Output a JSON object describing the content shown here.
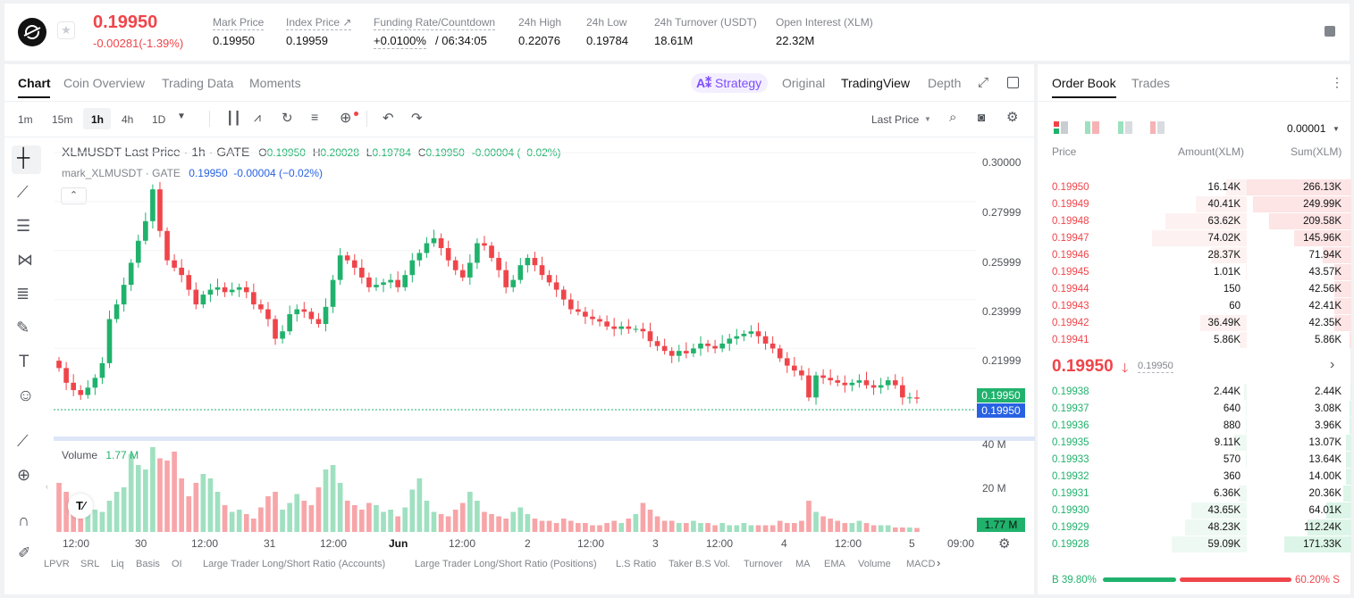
{
  "ticker": {
    "last_price": "0.19950",
    "change": "-0.00281(-1.39%)",
    "stats": [
      {
        "label": "Mark Price",
        "value": "0.19950"
      },
      {
        "label": "Index Price ↗",
        "value": "0.19959"
      },
      {
        "label": "Funding Rate/Countdown",
        "value": "+0.0100%",
        "value2": "/ 06:34:05"
      },
      {
        "label": "24h High",
        "value": "0.22076"
      },
      {
        "label": "24h Low",
        "value": "0.19784"
      },
      {
        "label": "24h Turnover (USDT)",
        "value": "18.61M"
      },
      {
        "label": "Open Interest (XLM)",
        "value": "22.32M"
      }
    ]
  },
  "chart_tabs": [
    "Chart",
    "Coin Overview",
    "Trading Data",
    "Moments"
  ],
  "view_tabs": {
    "strategy": "Strategy",
    "original": "Original",
    "tradingview": "TradingView",
    "depth": "Depth"
  },
  "intervals": [
    "1m",
    "15m",
    "1h",
    "4h",
    "1D"
  ],
  "price_type": "Last Price",
  "legend": {
    "symbol": "XLMUSDT Last Price · 1h · GATE",
    "o_label": "O",
    "o": "0.19950",
    "h_label": "H",
    "h": "0.20028",
    "l_label": "L",
    "l": "0.19784",
    "c_label": "C",
    "c": "0.19950",
    "chg": "-0.00004 (−0.02%)",
    "mark": "mark_XLMUSDT · GATE",
    "mark_vals": "0.19950  -0.00004 (−0.02%)"
  },
  "volume": {
    "label": "Volume",
    "value": "1.77 M",
    "axis": [
      "40 M",
      "20 M"
    ],
    "badge": "1.77 M"
  },
  "indicators": [
    "LPVR",
    "SRL",
    "Liq",
    "Basis",
    "OI",
    "Large Trader Long/Short Ratio (Accounts)",
    "Large Trader Long/Short Ratio (Positions)",
    "L.S Ratio",
    "Taker B.S Vol.",
    "Turnover",
    "MA",
    "EMA",
    "Volume",
    "MACD"
  ],
  "colors": {
    "up": "#20b26c",
    "down": "#ef454a",
    "accent": "#2862e3"
  },
  "chart_data": {
    "type": "candlestick",
    "y_ticks": [
      "0.30000",
      "0.27999",
      "0.25999",
      "0.23999",
      "0.21999"
    ],
    "ylim": [
      0.195,
      0.3
    ],
    "x_ticks": [
      "12:00",
      "30",
      "12:00",
      "31",
      "12:00",
      "Jun",
      "12:00",
      "2",
      "12:00",
      "3",
      "12:00",
      "4",
      "12:00",
      "5",
      "09:00"
    ],
    "price_badges": [
      "0.19950",
      "0.19950"
    ],
    "close": [
      0.212,
      0.206,
      0.203,
      0.201,
      0.204,
      0.208,
      0.214,
      0.232,
      0.238,
      0.246,
      0.255,
      0.264,
      0.272,
      0.285,
      0.268,
      0.256,
      0.253,
      0.25,
      0.244,
      0.238,
      0.242,
      0.244,
      0.245,
      0.243,
      0.244,
      0.245,
      0.243,
      0.238,
      0.236,
      0.232,
      0.224,
      0.227,
      0.234,
      0.236,
      0.235,
      0.232,
      0.23,
      0.237,
      0.248,
      0.258,
      0.256,
      0.253,
      0.249,
      0.245,
      0.246,
      0.247,
      0.248,
      0.245,
      0.25,
      0.256,
      0.259,
      0.263,
      0.265,
      0.261,
      0.256,
      0.252,
      0.249,
      0.255,
      0.263,
      0.262,
      0.257,
      0.252,
      0.245,
      0.248,
      0.254,
      0.257,
      0.254,
      0.25,
      0.247,
      0.244,
      0.24,
      0.236,
      0.235,
      0.233,
      0.232,
      0.231,
      0.229,
      0.228,
      0.229,
      0.228,
      0.228,
      0.227,
      0.223,
      0.221,
      0.219,
      0.217,
      0.219,
      0.218,
      0.22,
      0.222,
      0.221,
      0.22,
      0.222,
      0.224,
      0.225,
      0.226,
      0.227,
      0.225,
      0.222,
      0.22,
      0.216,
      0.213,
      0.211,
      0.209,
      0.2,
      0.209,
      0.208,
      0.207,
      0.206,
      0.205,
      0.206,
      0.207,
      0.205,
      0.204,
      0.205,
      0.207,
      0.205,
      0.2,
      0.2,
      0.1995
    ],
    "volume_m": [
      22,
      18,
      8,
      6,
      12,
      10,
      9,
      14,
      18,
      20,
      35,
      30,
      28,
      38,
      33,
      32,
      36,
      24,
      16,
      22,
      26,
      24,
      18,
      12,
      9,
      10,
      8,
      6,
      11,
      16,
      18,
      10,
      13,
      17,
      14,
      12,
      20,
      28,
      30,
      22,
      14,
      12,
      10,
      13,
      12,
      9,
      10,
      7,
      11,
      19,
      24,
      14,
      9,
      8,
      7,
      10,
      13,
      18,
      14,
      9,
      8,
      7,
      6,
      9,
      11,
      8,
      6,
      5,
      5,
      4,
      6,
      5,
      4,
      4,
      3,
      3,
      4,
      5,
      4,
      6,
      8,
      13,
      10,
      7,
      5,
      5,
      4,
      4,
      5,
      4,
      4,
      3,
      4,
      3,
      3,
      4,
      3,
      3,
      3,
      3,
      5,
      4,
      4,
      5,
      14,
      9,
      7,
      6,
      5,
      4,
      4,
      5,
      4,
      3,
      3,
      3,
      2,
      2,
      2,
      1.77
    ]
  },
  "orderbook": {
    "tabs": [
      "Order Book",
      "Trades"
    ],
    "precision": "0.00001",
    "headers": [
      "Price",
      "Amount(XLM)",
      "Sum(XLM)"
    ],
    "asks": [
      [
        "0.19950",
        "16.14K",
        "266.13K"
      ],
      [
        "0.19949",
        "40.41K",
        "249.99K"
      ],
      [
        "0.19948",
        "63.62K",
        "209.58K"
      ],
      [
        "0.19947",
        "74.02K",
        "145.96K"
      ],
      [
        "0.19946",
        "28.37K",
        "71.94K"
      ],
      [
        "0.19945",
        "1.01K",
        "43.57K"
      ],
      [
        "0.19944",
        "150",
        "42.56K"
      ],
      [
        "0.19943",
        "60",
        "42.41K"
      ],
      [
        "0.19942",
        "36.49K",
        "42.35K"
      ],
      [
        "0.19941",
        "5.86K",
        "5.86K"
      ]
    ],
    "ask_sum_frac": [
      1,
      0.94,
      0.79,
      0.55,
      0.27,
      0.16,
      0.16,
      0.16,
      0.16,
      0.02
    ],
    "ask_amt_frac": [
      0.2,
      0.5,
      0.79,
      0.92,
      0.35,
      0.01,
      0,
      0,
      0.45,
      0.07
    ],
    "mid_price": "0.19950",
    "mid_mark": "0.19950",
    "bids": [
      [
        "0.19938",
        "2.44K",
        "2.44K"
      ],
      [
        "0.19937",
        "640",
        "3.08K"
      ],
      [
        "0.19936",
        "880",
        "3.96K"
      ],
      [
        "0.19935",
        "9.11K",
        "13.07K"
      ],
      [
        "0.19933",
        "570",
        "13.64K"
      ],
      [
        "0.19932",
        "360",
        "14.00K"
      ],
      [
        "0.19931",
        "6.36K",
        "20.36K"
      ],
      [
        "0.19930",
        "43.65K",
        "64.01K"
      ],
      [
        "0.19929",
        "48.23K",
        "112.24K"
      ],
      [
        "0.19928",
        "59.09K",
        "171.33K"
      ]
    ],
    "bid_sum_frac": [
      0.01,
      0.02,
      0.02,
      0.05,
      0.05,
      0.05,
      0.08,
      0.24,
      0.42,
      0.64
    ],
    "bid_amt_frac": [
      0.03,
      0.01,
      0.01,
      0.11,
      0.01,
      0,
      0.08,
      0.54,
      0.6,
      0.73
    ],
    "buy_pct": "B 39.80%",
    "sell_pct": "60.20% S",
    "buy_frac": 0.398
  }
}
